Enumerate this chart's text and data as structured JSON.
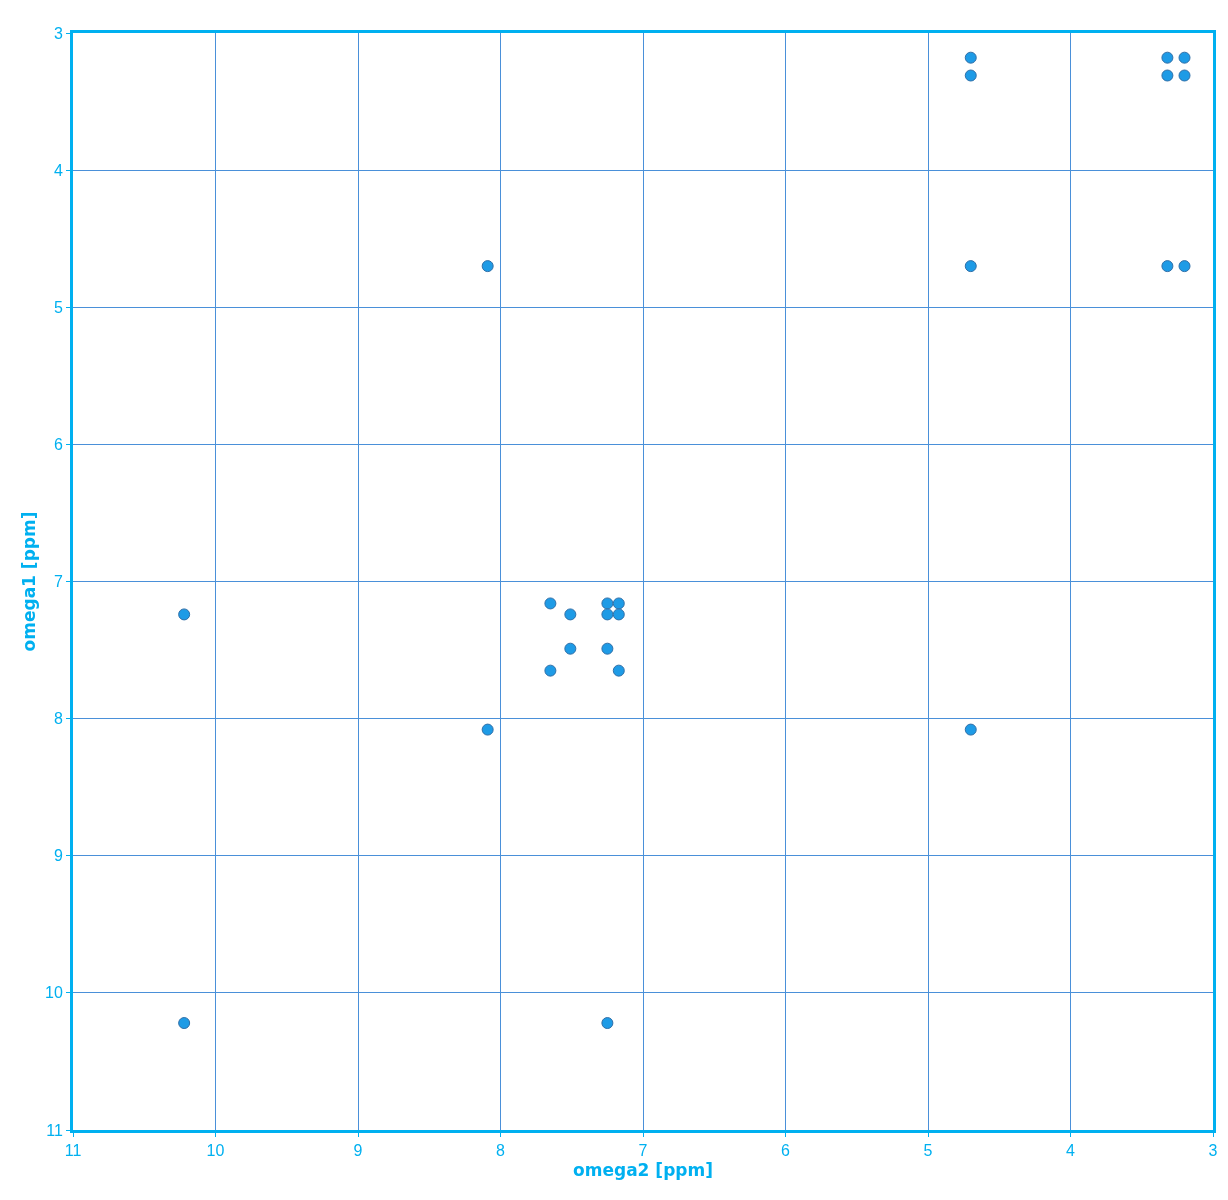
{
  "chart_data": {
    "type": "scatter",
    "xlabel": "omega2 [ppm]",
    "ylabel": "omega1 [ppm]",
    "x": [
      4.7,
      4.7,
      3.32,
      3.2,
      3.32,
      3.2,
      8.09,
      4.7,
      3.32,
      3.2,
      10.22,
      7.65,
      7.51,
      7.25,
      7.17,
      7.25,
      7.17,
      7.51,
      7.25,
      7.65,
      7.17,
      8.09,
      4.7,
      10.22,
      7.25
    ],
    "series": [
      {
        "color": "#1e9be6",
        "values": [
          3.18,
          3.31,
          3.18,
          3.18,
          3.31,
          3.31,
          4.7,
          4.7,
          4.7,
          4.7,
          7.24,
          7.16,
          7.24,
          7.16,
          7.16,
          7.24,
          7.24,
          7.49,
          7.49,
          7.65,
          7.65,
          8.08,
          8.08,
          10.22,
          10.22
        ]
      }
    ],
    "xlim": [
      11,
      3
    ],
    "ylim": [
      11,
      3
    ],
    "xticks": [
      11,
      10,
      9,
      8,
      7,
      6,
      5,
      4,
      3
    ],
    "yticks": [
      3,
      4,
      5,
      6,
      7,
      8,
      9,
      10,
      11
    ],
    "grid": true,
    "marker": "circle"
  }
}
